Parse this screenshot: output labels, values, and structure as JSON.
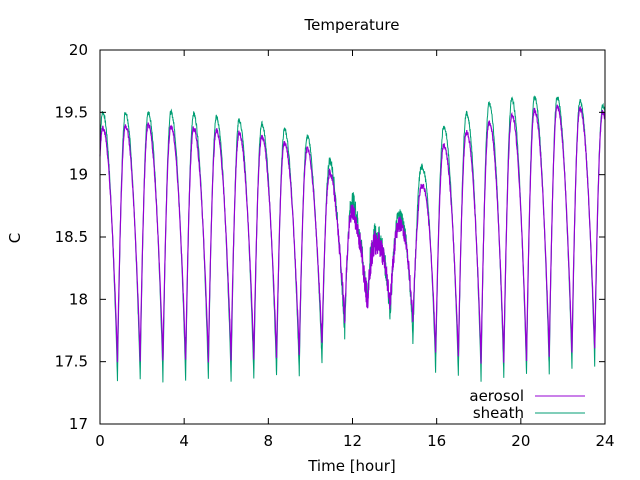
{
  "chart_data": {
    "type": "line",
    "title": "Temperature",
    "xlabel": "Time [hour]",
    "ylabel": "C",
    "xlim": [
      0,
      24
    ],
    "ylim": [
      17,
      20
    ],
    "x_ticks": [
      "0",
      "4",
      "8",
      "12",
      "16",
      "20",
      "24"
    ],
    "y_ticks": [
      "17",
      "17.5",
      "18",
      "18.5",
      "19",
      "19.5",
      "20"
    ],
    "legend_position": "bottom-right",
    "grid": false,
    "series": [
      {
        "name": "aerosol",
        "color": "#9400d3",
        "cycle_period_hours": 1.08,
        "envelope_hours": [
          0,
          2,
          4,
          6,
          8,
          10,
          11,
          12,
          13,
          14,
          15,
          16,
          18,
          20,
          22,
          24
        ],
        "envelope_max": [
          19.38,
          19.4,
          19.38,
          19.35,
          19.3,
          19.2,
          19.0,
          18.7,
          18.45,
          18.55,
          18.8,
          19.2,
          19.4,
          19.5,
          19.55,
          19.5
        ],
        "envelope_min": [
          17.5,
          17.5,
          17.5,
          17.52,
          17.52,
          17.55,
          17.7,
          17.95,
          18.0,
          17.95,
          17.8,
          17.55,
          17.5,
          17.5,
          17.55,
          17.6
        ]
      },
      {
        "name": "sheath",
        "color": "#009e73",
        "cycle_period_hours": 1.08,
        "envelope_hours": [
          0,
          2,
          4,
          6,
          8,
          10,
          11,
          12,
          13,
          14,
          15,
          16,
          18,
          20,
          22,
          24
        ],
        "envelope_max": [
          19.5,
          19.5,
          19.5,
          19.45,
          19.4,
          19.3,
          19.1,
          18.8,
          18.5,
          18.6,
          18.95,
          19.35,
          19.55,
          19.62,
          19.62,
          19.55
        ],
        "envelope_min": [
          17.35,
          17.35,
          17.35,
          17.35,
          17.37,
          17.4,
          17.55,
          17.85,
          18.05,
          17.85,
          17.65,
          17.4,
          17.35,
          17.38,
          17.42,
          17.5
        ]
      }
    ]
  }
}
